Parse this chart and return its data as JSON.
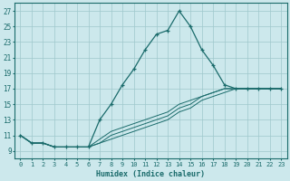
{
  "xlabel": "Humidex (Indice chaleur)",
  "bg_color": "#cce8ec",
  "grid_color": "#9fc8cc",
  "line_color": "#1a6b6b",
  "xlim": [
    -0.5,
    23.5
  ],
  "ylim": [
    8.0,
    28.0
  ],
  "xticks": [
    0,
    1,
    2,
    3,
    4,
    5,
    6,
    7,
    8,
    9,
    10,
    11,
    12,
    13,
    14,
    15,
    16,
    17,
    18,
    19,
    20,
    21,
    22,
    23
  ],
  "yticks": [
    9,
    11,
    13,
    15,
    17,
    19,
    21,
    23,
    25,
    27
  ],
  "series_main": [
    11,
    10,
    10,
    9.5,
    9.5,
    9.5,
    9.5,
    13,
    15,
    17.5,
    19.5,
    22,
    24,
    24.5,
    27,
    25,
    22,
    20,
    17.5,
    17,
    17,
    17,
    17,
    17
  ],
  "series_flat": [
    [
      11,
      10,
      10,
      9.5,
      9.5,
      9.5,
      9.5,
      10,
      10.5,
      11,
      11.5,
      12,
      12.5,
      13,
      14,
      14.5,
      15.5,
      16,
      16.5,
      17,
      17,
      17,
      17,
      17
    ],
    [
      11,
      10,
      10,
      9.5,
      9.5,
      9.5,
      9.5,
      10,
      11,
      11.5,
      12,
      12.5,
      13,
      13.5,
      14.5,
      15,
      16,
      16.5,
      17,
      17,
      17,
      17,
      17,
      17
    ],
    [
      11,
      10,
      10,
      9.5,
      9.5,
      9.5,
      9.5,
      10.5,
      11.5,
      12,
      12.5,
      13,
      13.5,
      14,
      15,
      15.5,
      16,
      16.5,
      17,
      17,
      17,
      17,
      17,
      17
    ]
  ]
}
